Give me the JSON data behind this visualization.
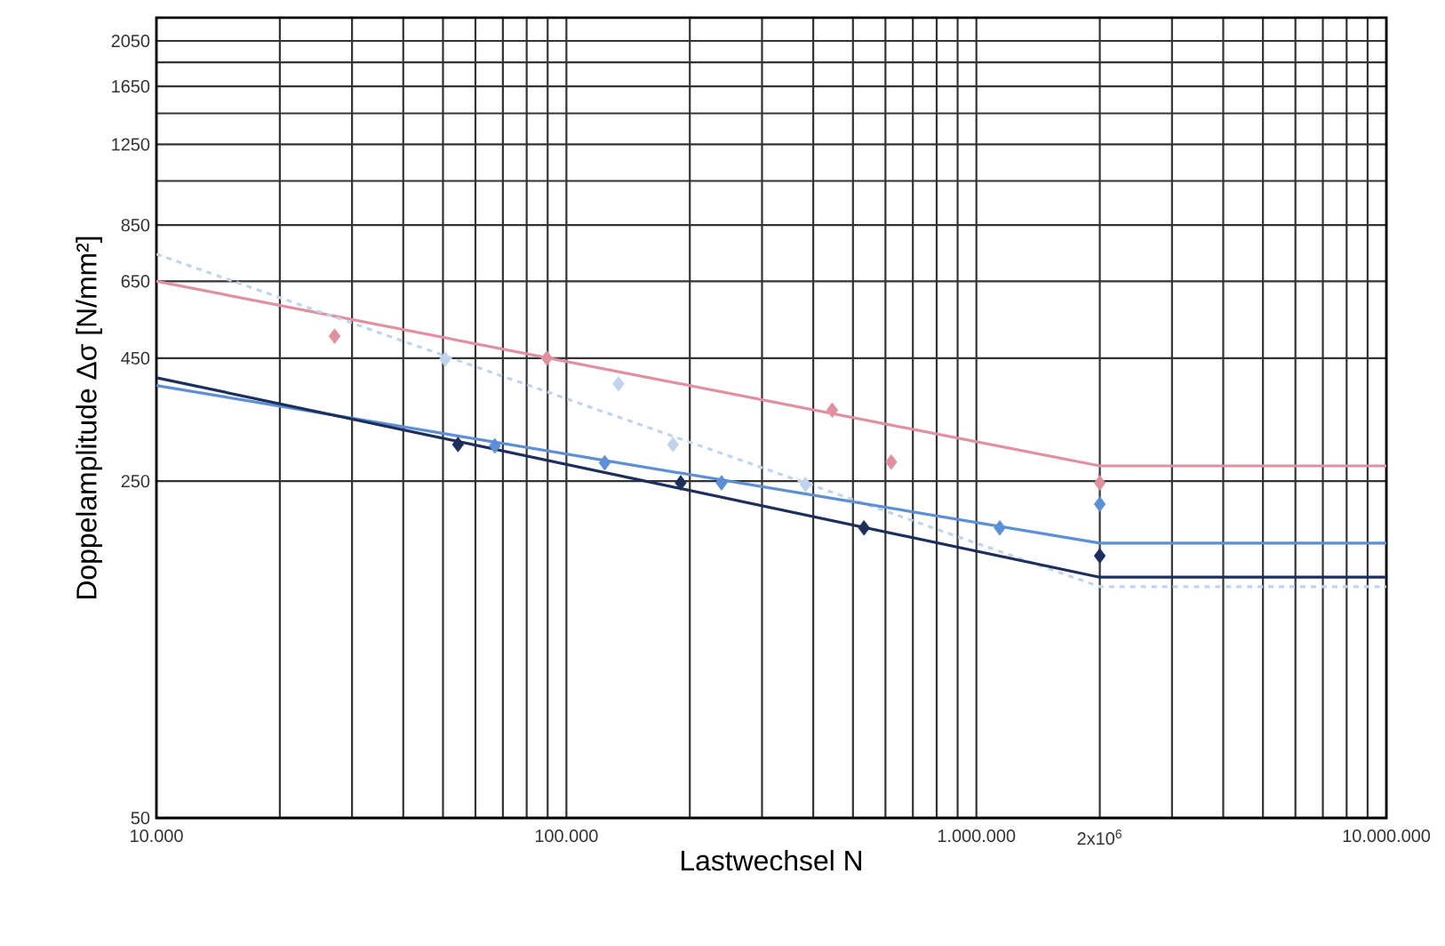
{
  "chart_data": {
    "type": "scatter",
    "xlabel": "Lastwechsel N",
    "ylabel": "Doppelamplitude Δσ [N/mm²]",
    "log": "xy",
    "grid": true,
    "xlim": [
      10000,
      10000000
    ],
    "ylim": [
      50,
      2290
    ],
    "xticks": [
      {
        "value": 10000,
        "label": "10.000"
      },
      {
        "value": 20000,
        "label": null
      },
      {
        "value": 30000,
        "label": null
      },
      {
        "value": 40000,
        "label": null
      },
      {
        "value": 50000,
        "label": null
      },
      {
        "value": 60000,
        "label": null
      },
      {
        "value": 70000,
        "label": null
      },
      {
        "value": 80000,
        "label": null
      },
      {
        "value": 90000,
        "label": null
      },
      {
        "value": 100000,
        "label": "100.000"
      },
      {
        "value": 200000,
        "label": null
      },
      {
        "value": 300000,
        "label": null
      },
      {
        "value": 400000,
        "label": null
      },
      {
        "value": 500000,
        "label": null
      },
      {
        "value": 600000,
        "label": null
      },
      {
        "value": 700000,
        "label": null
      },
      {
        "value": 800000,
        "label": null
      },
      {
        "value": 900000,
        "label": null
      },
      {
        "value": 1000000,
        "label": "1.000.000"
      },
      {
        "value": 2000000,
        "label": "2x10$^{6}$"
      },
      {
        "value": 3000000,
        "label": null
      },
      {
        "value": 4000000,
        "label": null
      },
      {
        "value": 5000000,
        "label": null
      },
      {
        "value": 6000000,
        "label": null
      },
      {
        "value": 7000000,
        "label": null
      },
      {
        "value": 8000000,
        "label": null
      },
      {
        "value": 9000000,
        "label": null
      },
      {
        "value": 10000000,
        "label": "10.000.000"
      }
    ],
    "yticks": [
      50,
      250,
      450,
      650,
      850,
      {
        "value": 1050,
        "label": null
      },
      1250,
      {
        "value": 1450,
        "label": null
      },
      1650,
      {
        "value": 1850,
        "label": null
      },
      2050
    ],
    "series": [
      {
        "type": "line",
        "color": "#e0909f",
        "line_style": "solid",
        "marker": "none",
        "x": [
          10000,
          2000000,
          10000000
        ],
        "values": [
          650,
          269,
          269
        ]
      },
      {
        "type": "line",
        "color": "#c0d4f0",
        "line_style": "dashed",
        "marker": "none",
        "x": [
          10000,
          2000000,
          10000000
        ],
        "values": [
          740,
          151,
          151
        ]
      },
      {
        "type": "line",
        "color": "#5b8fd6",
        "line_style": "solid",
        "marker": "none",
        "x": [
          10000,
          2000000,
          10000000
        ],
        "values": [
          395,
          186,
          186
        ]
      },
      {
        "type": "line",
        "color": "#1c2f5c",
        "line_style": "solid",
        "marker": "none",
        "x": [
          10000,
          2000000,
          10000000
        ],
        "values": [
          410,
          158,
          158
        ]
      },
      {
        "color": "#e0909f",
        "marker": "diamond",
        "x": [
          27200,
          89600,
          445000,
          620000,
          2000000
        ],
        "values": [
          500,
          450,
          351,
          274,
          248
        ]
      },
      {
        "color": "#c0d4f0",
        "marker": "diamond",
        "x": [
          50600,
          134000,
          182000,
          383000
        ],
        "values": [
          448,
          398,
          298,
          246
        ]
      },
      {
        "color": "#5b8fd6",
        "marker": "diamond",
        "x": [
          66900,
          124000,
          239000,
          1140000,
          2000000
        ],
        "values": [
          296,
          273,
          248,
          200,
          224
        ]
      },
      {
        "color": "#1c2f5c",
        "marker": "diamond",
        "x": [
          54400,
          190000,
          532000,
          2000000
        ],
        "values": [
          298,
          248,
          200,
          175
        ]
      }
    ]
  }
}
